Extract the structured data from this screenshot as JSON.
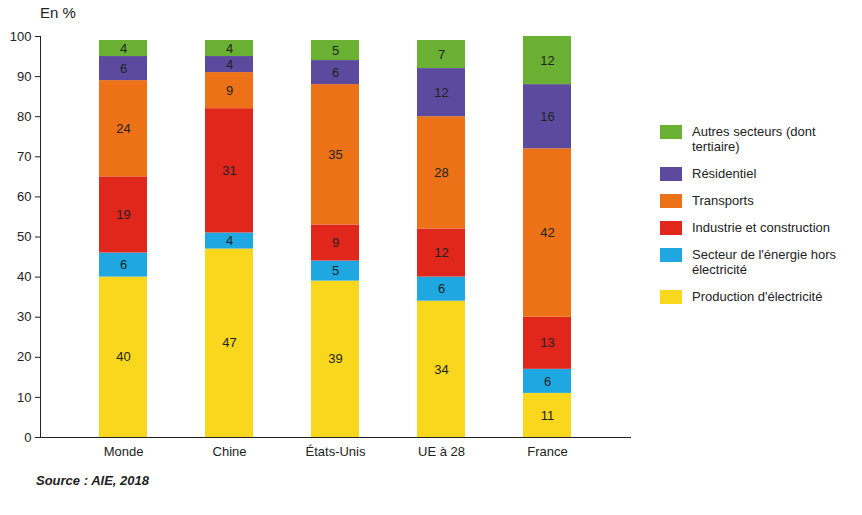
{
  "chart_data": {
    "type": "bar",
    "ylabel": "En %",
    "caption": "Source : AIE, 2018",
    "categories": [
      "Monde",
      "Chine",
      "États-Unis",
      "UE à 28",
      "France"
    ],
    "series": [
      {
        "name": "Production d'électricité",
        "color": "#f9d71c",
        "values": [
          40,
          47,
          39,
          34,
          11
        ]
      },
      {
        "name": "Secteur de l'énergie hors électricité",
        "color": "#1ea7e1",
        "values": [
          6,
          4,
          5,
          6,
          6
        ]
      },
      {
        "name": "Industrie et construction",
        "color": "#e1261c",
        "values": [
          19,
          31,
          9,
          12,
          13
        ]
      },
      {
        "name": "Transports",
        "color": "#ec7117",
        "values": [
          24,
          9,
          35,
          28,
          42
        ]
      },
      {
        "name": "Résidentiel",
        "color": "#5b4a9e",
        "values": [
          6,
          4,
          6,
          12,
          16
        ]
      },
      {
        "name": "Autres secteurs (dont tertiaire)",
        "color": "#6ab033",
        "values": [
          4,
          4,
          5,
          7,
          12
        ]
      }
    ],
    "ylim": [
      0,
      100
    ],
    "yticks": [
      0,
      10,
      20,
      30,
      40,
      50,
      60,
      70,
      80,
      90,
      100
    ],
    "stacked": true,
    "data_labels": true,
    "legend": "right",
    "grid": false
  }
}
